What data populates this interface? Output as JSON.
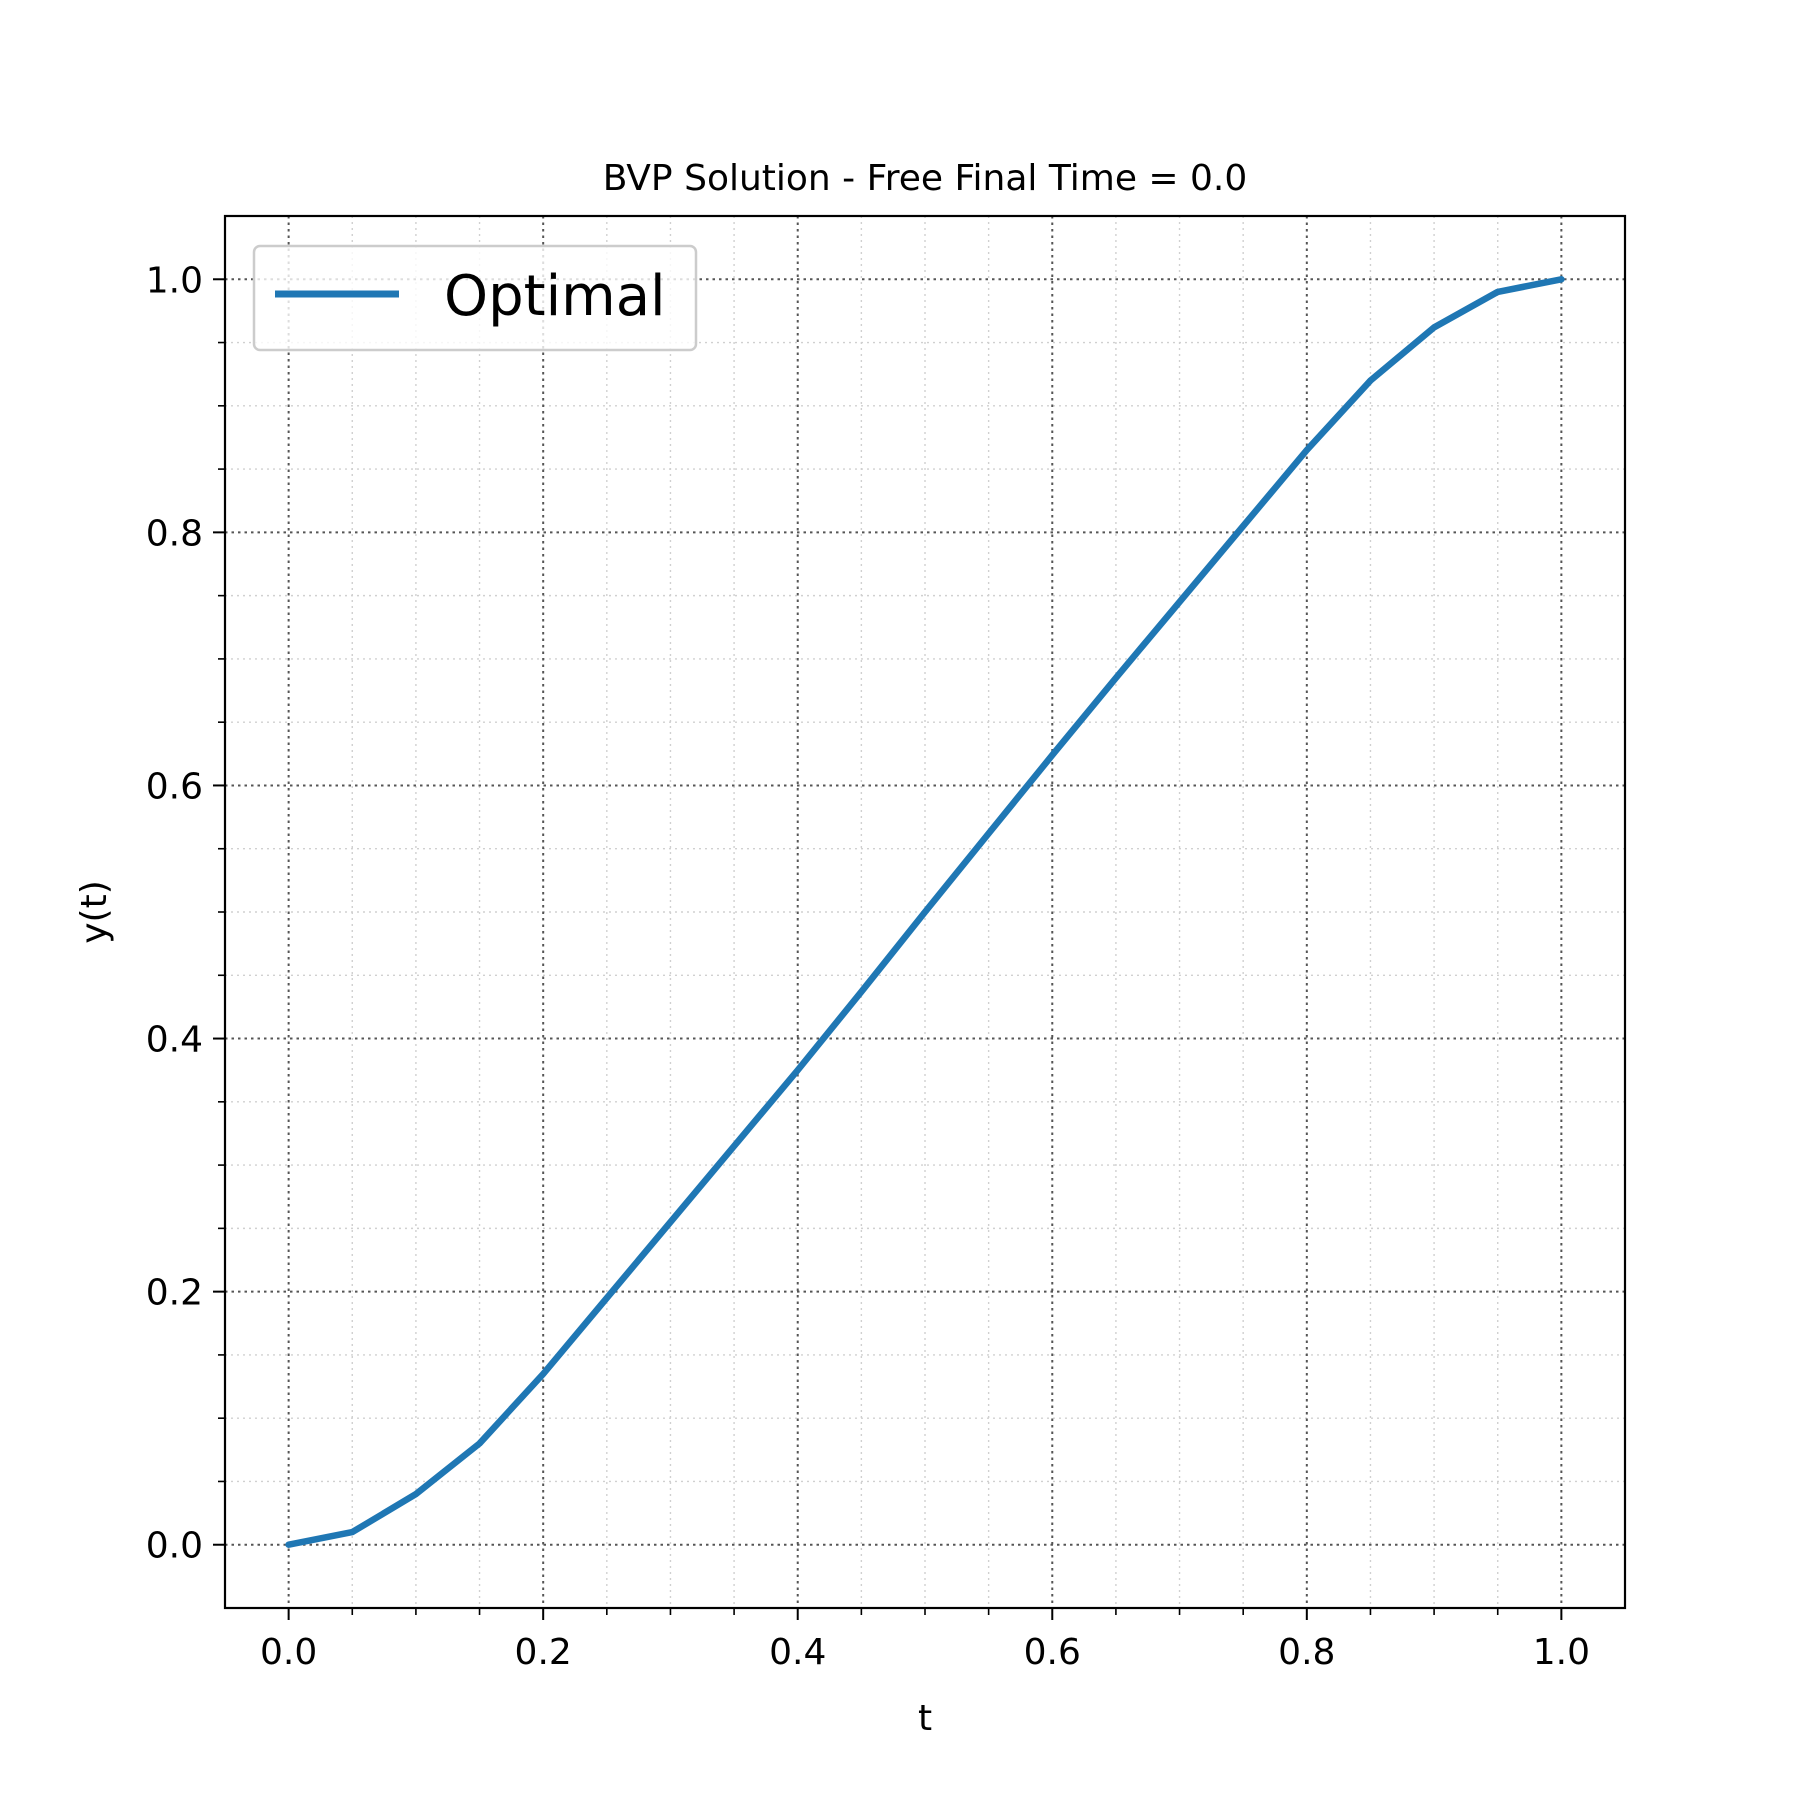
{
  "chart_data": {
    "type": "line",
    "title": "BVP Solution - Free Final Time = 0.0",
    "xlabel": "t",
    "ylabel": "y(t)",
    "xlim": [
      -0.05,
      1.05
    ],
    "ylim": [
      -0.05,
      1.05
    ],
    "xticks": [
      "0.0",
      "0.2",
      "0.4",
      "0.6",
      "0.8",
      "1.0"
    ],
    "yticks": [
      "0.0",
      "0.2",
      "0.4",
      "0.6",
      "0.8",
      "1.0"
    ],
    "grid": true,
    "minor_grid": true,
    "legend_position": "upper-left",
    "series": [
      {
        "name": "Optimal",
        "color": "#1f77b4",
        "x": [
          0.0,
          0.05,
          0.1,
          0.15,
          0.2,
          0.25,
          0.3,
          0.35,
          0.4,
          0.45,
          0.5,
          0.55,
          0.6,
          0.65,
          0.7,
          0.75,
          0.8,
          0.85,
          0.9,
          0.95,
          1.0
        ],
        "y": [
          0.0,
          0.01,
          0.04,
          0.08,
          0.135,
          0.195,
          0.255,
          0.315,
          0.375,
          0.437,
          0.5,
          0.562,
          0.624,
          0.685,
          0.745,
          0.805,
          0.865,
          0.92,
          0.962,
          0.99,
          1.0
        ]
      }
    ]
  }
}
